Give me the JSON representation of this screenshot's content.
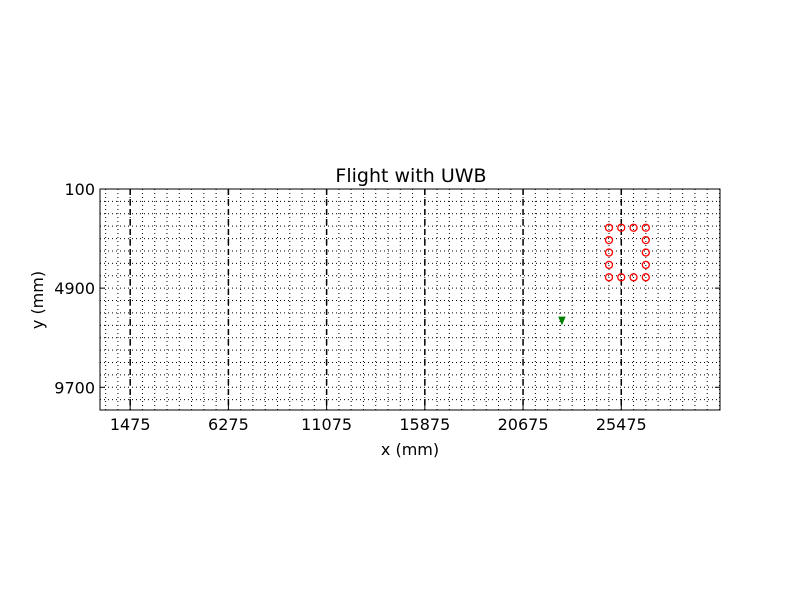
{
  "chart_data": {
    "type": "scatter",
    "title": "Flight with UWB",
    "xlabel": "x (mm)",
    "ylabel": "y (mm)",
    "xlim": [
      0,
      30300
    ],
    "ylim": [
      10800,
      100
    ],
    "x_ticks": [
      1475,
      6275,
      11075,
      15875,
      20675,
      25475
    ],
    "x_tick_labels": [
      "1475",
      "6275",
      "11075",
      "15875",
      "20675",
      "25475"
    ],
    "y_ticks": [
      100,
      4900,
      9700
    ],
    "y_tick_labels": [
      "100",
      "4900",
      "9700"
    ],
    "grid": true,
    "series": [
      {
        "marker": "circle-open",
        "color": "#ff0000",
        "x": [
          24875,
          25475,
          26075,
          26675,
          24875,
          26675,
          24875,
          26675,
          24875,
          26675,
          24875,
          25475,
          26075,
          26675
        ],
        "y": [
          1975,
          1975,
          1975,
          1975,
          2575,
          2575,
          3175,
          3175,
          3775,
          3775,
          4375,
          4375,
          4375,
          4375
        ]
      },
      {
        "marker": "triangle",
        "color": "#008000",
        "x": [
          22575
        ],
        "y": [
          6450
        ]
      }
    ]
  }
}
